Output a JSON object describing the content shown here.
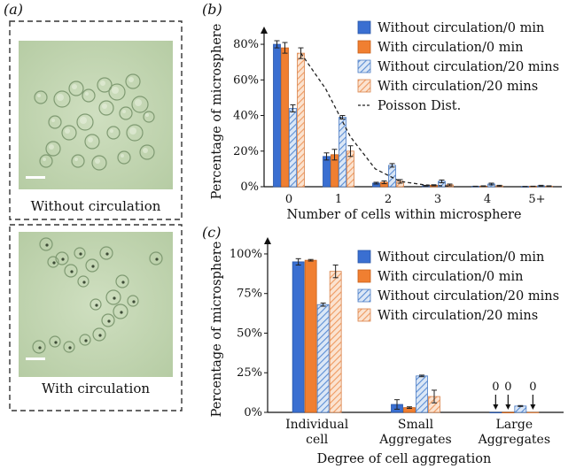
{
  "micrographs": {
    "panel_label": "(a)",
    "top_caption": "Without circulation",
    "bottom_caption": "With circulation"
  },
  "legend": [
    {
      "name": "Without circulation/0 min",
      "color": "#3a6fd1",
      "pattern": "solid"
    },
    {
      "name": "With circulation/0 min",
      "color": "#f07f31",
      "pattern": "solid"
    },
    {
      "name": "Without circulation/20 mins",
      "color": "#6a9bd9",
      "pattern": "hatch"
    },
    {
      "name": "With circulation/20 mins",
      "color": "#f0a06c",
      "pattern": "hatch"
    }
  ],
  "chart_data": [
    {
      "panel_label": "(b)",
      "type": "bar",
      "xlabel": "Number of cells within microsphere",
      "ylabel": "Percentage of microsphere",
      "categories": [
        "0",
        "1",
        "2",
        "3",
        "4",
        "5+"
      ],
      "ylim": [
        0,
        85
      ],
      "yticks": [
        "0%",
        "20%",
        "40%",
        "60%",
        "80%"
      ],
      "ytick_values": [
        0,
        20,
        40,
        60,
        80
      ],
      "series": [
        {
          "name": "Without circulation/0 min",
          "values": [
            80,
            17,
            2,
            0.5,
            0.2,
            0.1
          ],
          "errors": [
            2,
            2,
            0.5,
            0.3,
            0.1,
            0.1
          ]
        },
        {
          "name": "With circulation/0 min",
          "values": [
            78,
            18,
            2.5,
            0.8,
            0.3,
            0.2
          ],
          "errors": [
            3,
            3,
            0.8,
            0.3,
            0.2,
            0.1
          ]
        },
        {
          "name": "Without circulation/20 mins",
          "values": [
            44,
            39,
            12,
            3,
            1.5,
            0.5
          ],
          "errors": [
            2,
            1,
            1,
            0.8,
            0.5,
            0.3
          ]
        },
        {
          "name": "With circulation/20 mins",
          "values": [
            75,
            20,
            3,
            1,
            0.5,
            0.3
          ],
          "errors": [
            3,
            3,
            1,
            0.5,
            0.3,
            0.2
          ]
        }
      ],
      "poisson": {
        "name": "Poisson Dist.",
        "x": [
          0,
          0.5,
          1,
          1.5,
          2,
          2.5,
          3
        ],
        "values": [
          75,
          55,
          28,
          10,
          3,
          1,
          0.3
        ]
      }
    },
    {
      "panel_label": "(c)",
      "type": "bar",
      "xlabel": "Degree of cell aggregation",
      "ylabel": "Percentage of microsphere",
      "categories": [
        "Individual cell",
        "Small Aggregates",
        "Large Aggregates"
      ],
      "category_lines": [
        [
          "Individual",
          "cell"
        ],
        [
          "Small",
          "Aggregates"
        ],
        [
          "Large",
          "Aggregates"
        ]
      ],
      "ylim": [
        0,
        105
      ],
      "yticks": [
        "0%",
        "25%",
        "50%",
        "75%",
        "100%"
      ],
      "ytick_values": [
        0,
        25,
        50,
        75,
        100
      ],
      "series": [
        {
          "name": "Without circulation/0 min",
          "values": [
            95,
            5,
            0
          ],
          "errors": [
            2,
            3,
            0
          ]
        },
        {
          "name": "With circulation/0 min",
          "values": [
            96,
            3,
            0
          ],
          "errors": [
            0.5,
            0.5,
            0
          ]
        },
        {
          "name": "Without circulation/20 mins",
          "values": [
            68,
            23,
            4
          ],
          "errors": [
            1,
            0.5,
            0.3
          ]
        },
        {
          "name": "With circulation/20 mins",
          "values": [
            89,
            10,
            0
          ],
          "errors": [
            4,
            4,
            0
          ]
        }
      ],
      "zero_annotations": [
        {
          "series": 0,
          "category": 2,
          "text": "0"
        },
        {
          "series": 1,
          "category": 2,
          "text": "0"
        },
        {
          "series": 3,
          "category": 2,
          "text": "0"
        }
      ]
    }
  ]
}
